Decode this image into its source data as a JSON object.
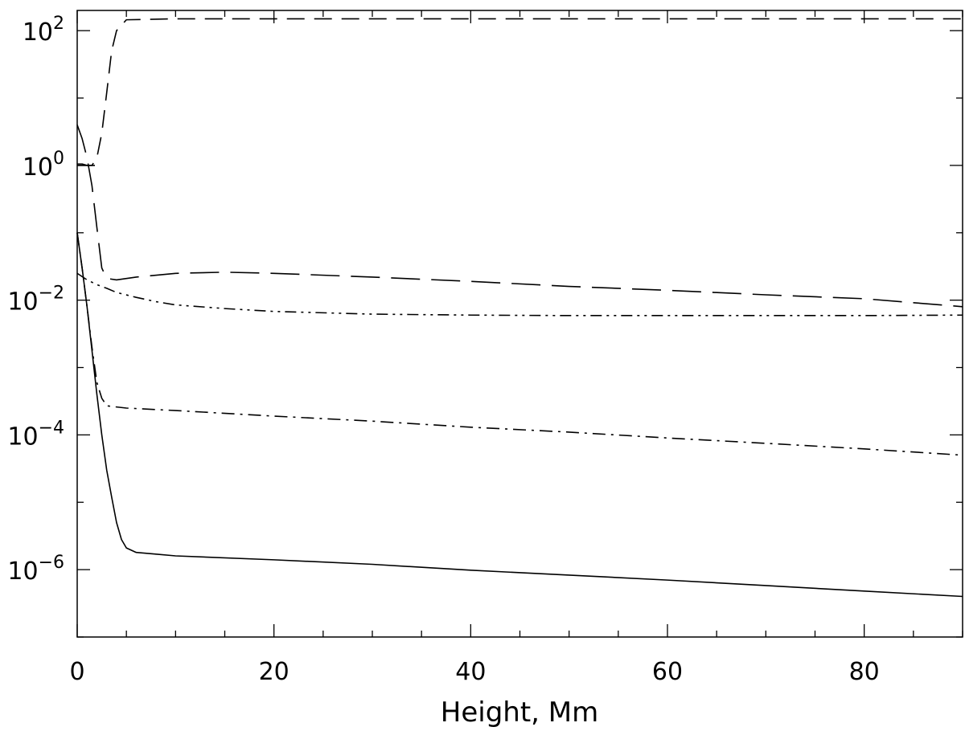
{
  "chart_data": {
    "type": "line",
    "title": "",
    "xlabel": "Height, Mm",
    "ylabel": "",
    "xlim": [
      0,
      90
    ],
    "ylim_log10": [
      -7,
      2.3
    ],
    "yscale": "log",
    "grid": false,
    "xticks": [
      {
        "value": 0,
        "label": "0"
      },
      {
        "value": 20,
        "label": "20"
      },
      {
        "value": 40,
        "label": "40"
      },
      {
        "value": 60,
        "label": "60"
      },
      {
        "value": 80,
        "label": "80"
      }
    ],
    "yticks": [
      {
        "log10": 2,
        "base": "10",
        "exp": "2"
      },
      {
        "log10": 0,
        "base": "10",
        "exp": "0"
      },
      {
        "log10": -2,
        "base": "10",
        "exp": "−2"
      },
      {
        "log10": -4,
        "base": "10",
        "exp": "−4"
      },
      {
        "log10": -6,
        "base": "10",
        "exp": "−6"
      }
    ],
    "series": [
      {
        "linestyle": "solid",
        "x": [
          0,
          0.5,
          1,
          1.5,
          2,
          2.5,
          3,
          3.5,
          4,
          4.5,
          5,
          6,
          8,
          10,
          20,
          30,
          40,
          50,
          60,
          70,
          80,
          90
        ],
        "y": [
          0.1,
          0.03,
          0.008,
          0.0018,
          0.0004,
          0.0001,
          3e-05,
          1.2e-05,
          5e-06,
          2.8e-06,
          2.1e-06,
          1.8e-06,
          1.7e-06,
          1.6e-06,
          1.4e-06,
          1.2e-06,
          9.8e-07,
          8.3e-07,
          7e-07,
          5.8e-07,
          4.8e-07,
          4e-07
        ]
      },
      {
        "linestyle": "dash-dot",
        "x": [
          0,
          0.5,
          1,
          1.5,
          2,
          2.5,
          3,
          5,
          10,
          20,
          30,
          40,
          50,
          60,
          70,
          80,
          90
        ],
        "y": [
          0.1,
          0.03,
          0.008,
          0.002,
          0.0006,
          0.00035,
          0.00027,
          0.00025,
          0.00023,
          0.00019,
          0.00016,
          0.00013,
          0.00011,
          9e-05,
          7.5e-05,
          6.2e-05,
          5e-05
        ]
      },
      {
        "linestyle": "dash-dot-dot",
        "x": [
          0,
          1,
          2,
          3,
          4,
          6,
          8,
          10,
          15,
          20,
          30,
          40,
          50,
          60,
          70,
          80,
          90
        ],
        "y": [
          0.025,
          0.02,
          0.017,
          0.015,
          0.013,
          0.011,
          0.0095,
          0.0085,
          0.0075,
          0.0068,
          0.0062,
          0.006,
          0.0059,
          0.0059,
          0.0059,
          0.0059,
          0.006
        ]
      },
      {
        "linestyle": "long-dash",
        "x": [
          0,
          0.5,
          1,
          1.5,
          2,
          2.5,
          3,
          4,
          6,
          10,
          15,
          20,
          30,
          40,
          50,
          60,
          70,
          80,
          90
        ],
        "y": [
          4,
          2.5,
          1.3,
          0.5,
          0.12,
          0.03,
          0.021,
          0.02,
          0.022,
          0.025,
          0.026,
          0.025,
          0.022,
          0.019,
          0.016,
          0.014,
          0.012,
          0.0105,
          0.008
        ]
      },
      {
        "linestyle": "dashed",
        "x": [
          0,
          0.5,
          1,
          1.5,
          2,
          2.5,
          3,
          3.5,
          4,
          5,
          10,
          20,
          40,
          60,
          80,
          90
        ],
        "y": [
          1.05,
          1.05,
          1.0,
          1.0,
          1.3,
          3,
          12,
          50,
          100,
          145,
          150,
          150,
          150,
          150,
          150,
          150
        ]
      },
      {
        "linestyle": "solid",
        "x": [
          0,
          1,
          1.8
        ],
        "y": [
          1.0,
          1.0,
          1.0
        ]
      }
    ]
  }
}
